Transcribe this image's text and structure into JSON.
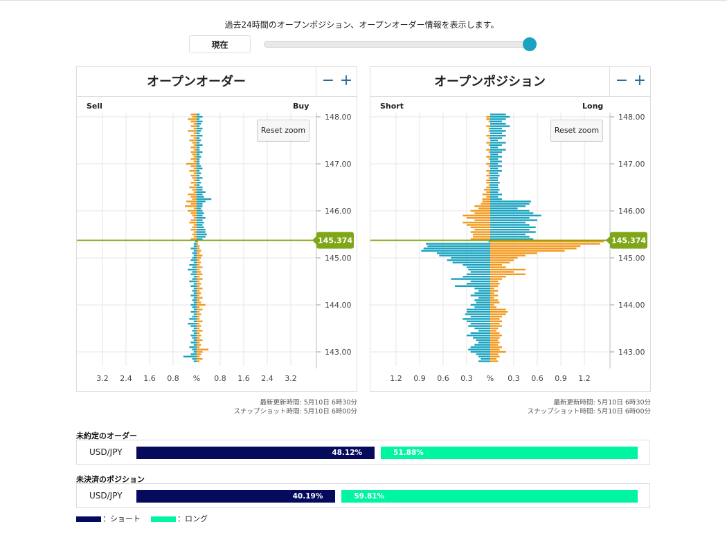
{
  "header": {
    "description": "過去24時間のオープンポジション、オープンオーダー情報を表示します。",
    "now_button": "現在",
    "time_slider_position": 1.0
  },
  "colors": {
    "sell_short_bar": "#1aa3c0",
    "buy_long_bar": "#f39a1e",
    "current_price_line": "#7fa616",
    "ratio_short": "#050a5c",
    "ratio_long": "#00f5a0",
    "slider_knob": "#1aa3c0",
    "zoom_buttons": "#2a6c96"
  },
  "panels": [
    {
      "title": "オープンオーダー",
      "left_label": "Sell",
      "right_label": "Buy",
      "reset_label": "Reset zoom",
      "updated": "最新更新時間: 5月10日 6時30分",
      "snapshot": "スナップショット時間: 5月10日 6時00分"
    },
    {
      "title": "オープンポジション",
      "left_label": "Short",
      "right_label": "Long",
      "reset_label": "Reset zoom",
      "updated": "最新更新時間: 5月10日 6時30分",
      "snapshot": "スナップショット時間: 5月10日 6時00分"
    }
  ],
  "chart_data": [
    {
      "type": "bar",
      "title": "オープンオーダー",
      "orientation": "horizontal-diverging",
      "left_series": "Sell",
      "right_series": "Buy",
      "current_price": "145.374",
      "price_ticks": [
        "148.00",
        "147.00",
        "146.00",
        "145.00",
        "144.00",
        "143.00"
      ],
      "ylim": [
        142.6,
        148.1
      ],
      "x_ticks": [
        "3.2",
        "2.4",
        "1.6",
        "0.8",
        "%",
        "0.8",
        "1.6",
        "2.4",
        "3.2"
      ],
      "xlim": [
        -4.0,
        4.0
      ],
      "bin_step": 0.05,
      "rows": [
        [
          148.05,
          0.2,
          0.1
        ],
        [
          148.0,
          0.15,
          0.2
        ],
        [
          147.95,
          0.3,
          0.1
        ],
        [
          147.9,
          0.2,
          0.2
        ],
        [
          147.85,
          0.1,
          0.15
        ],
        [
          147.8,
          0.2,
          0.1
        ],
        [
          147.75,
          0.1,
          0.2
        ],
        [
          147.7,
          0.3,
          0.15
        ],
        [
          147.65,
          0.1,
          0.1
        ],
        [
          147.6,
          0.2,
          0.2
        ],
        [
          147.55,
          0.1,
          0.1
        ],
        [
          147.5,
          0.25,
          0.15
        ],
        [
          147.45,
          0.15,
          0.1
        ],
        [
          147.4,
          0.1,
          0.2
        ],
        [
          147.35,
          0.2,
          0.1
        ],
        [
          147.3,
          0.1,
          0.1
        ],
        [
          147.25,
          0.2,
          0.2
        ],
        [
          147.2,
          0.15,
          0.1
        ],
        [
          147.15,
          0.1,
          0.15
        ],
        [
          147.1,
          0.2,
          0.1
        ],
        [
          147.05,
          0.1,
          0.1
        ],
        [
          147.0,
          0.35,
          0.1
        ],
        [
          146.95,
          0.2,
          0.15
        ],
        [
          146.9,
          0.1,
          0.2
        ],
        [
          146.85,
          0.25,
          0.1
        ],
        [
          146.8,
          0.1,
          0.15
        ],
        [
          146.75,
          0.2,
          0.1
        ],
        [
          146.7,
          0.15,
          0.2
        ],
        [
          146.65,
          0.1,
          0.1
        ],
        [
          146.6,
          0.2,
          0.15
        ],
        [
          146.55,
          0.1,
          0.1
        ],
        [
          146.5,
          0.25,
          0.2
        ],
        [
          146.45,
          0.15,
          0.2
        ],
        [
          146.4,
          0.1,
          0.3
        ],
        [
          146.35,
          0.3,
          0.2
        ],
        [
          146.3,
          0.2,
          0.25
        ],
        [
          146.25,
          0.15,
          0.5
        ],
        [
          146.2,
          0.35,
          0.3
        ],
        [
          146.15,
          0.2,
          0.2
        ],
        [
          146.1,
          0.4,
          0.2
        ],
        [
          146.05,
          0.1,
          0.15
        ],
        [
          146.0,
          0.3,
          0.2
        ],
        [
          145.95,
          0.2,
          0.25
        ],
        [
          145.9,
          0.15,
          0.2
        ],
        [
          145.85,
          0.1,
          0.3
        ],
        [
          145.8,
          0.2,
          0.2
        ],
        [
          145.75,
          0.25,
          0.25
        ],
        [
          145.7,
          0.1,
          0.2
        ],
        [
          145.65,
          0.15,
          0.25
        ],
        [
          145.6,
          0.2,
          0.3
        ],
        [
          145.55,
          0.1,
          0.3
        ],
        [
          145.5,
          0.15,
          0.35
        ],
        [
          145.45,
          0.1,
          0.3
        ],
        [
          145.4,
          0.2,
          0.2
        ],
        [
          145.35,
          0.05,
          0.05
        ],
        [
          145.3,
          0.1,
          0.05
        ],
        [
          145.25,
          0.1,
          0.1
        ],
        [
          145.2,
          0.2,
          0.1
        ],
        [
          145.15,
          0.1,
          0.15
        ],
        [
          145.1,
          0.15,
          0.1
        ],
        [
          145.05,
          0.1,
          0.2
        ],
        [
          145.0,
          0.15,
          0.15
        ],
        [
          144.95,
          0.2,
          0.1
        ],
        [
          144.9,
          0.1,
          0.15
        ],
        [
          144.85,
          0.25,
          0.1
        ],
        [
          144.8,
          0.15,
          0.2
        ],
        [
          144.75,
          0.3,
          0.1
        ],
        [
          144.7,
          0.15,
          0.15
        ],
        [
          144.65,
          0.2,
          0.2
        ],
        [
          144.6,
          0.1,
          0.1
        ],
        [
          144.55,
          0.15,
          0.2
        ],
        [
          144.5,
          0.25,
          0.1
        ],
        [
          144.45,
          0.1,
          0.15
        ],
        [
          144.4,
          0.2,
          0.1
        ],
        [
          144.35,
          0.1,
          0.2
        ],
        [
          144.3,
          0.15,
          0.1
        ],
        [
          144.25,
          0.1,
          0.15
        ],
        [
          144.2,
          0.2,
          0.1
        ],
        [
          144.15,
          0.1,
          0.2
        ],
        [
          144.1,
          0.15,
          0.1
        ],
        [
          144.05,
          0.1,
          0.15
        ],
        [
          144.0,
          0.2,
          0.3
        ],
        [
          143.95,
          0.15,
          0.1
        ],
        [
          143.9,
          0.1,
          0.2
        ],
        [
          143.85,
          0.2,
          0.1
        ],
        [
          143.8,
          0.1,
          0.15
        ],
        [
          143.75,
          0.15,
          0.1
        ],
        [
          143.7,
          0.25,
          0.1
        ],
        [
          143.65,
          0.1,
          0.2
        ],
        [
          143.6,
          0.3,
          0.1
        ],
        [
          143.55,
          0.2,
          0.15
        ],
        [
          143.5,
          0.1,
          0.1
        ],
        [
          143.45,
          0.15,
          0.2
        ],
        [
          143.4,
          0.1,
          0.1
        ],
        [
          143.35,
          0.2,
          0.15
        ],
        [
          143.3,
          0.15,
          0.1
        ],
        [
          143.25,
          0.1,
          0.2
        ],
        [
          143.2,
          0.2,
          0.1
        ],
        [
          143.15,
          0.1,
          0.15
        ],
        [
          143.1,
          0.25,
          0.1
        ],
        [
          143.05,
          0.15,
          0.4
        ],
        [
          143.0,
          0.1,
          0.2
        ],
        [
          142.95,
          0.2,
          0.15
        ],
        [
          142.9,
          0.45,
          0.1
        ],
        [
          142.85,
          0.15,
          0.2
        ],
        [
          142.8,
          0.1,
          0.1
        ]
      ]
    },
    {
      "type": "bar",
      "title": "オープンポジション",
      "orientation": "horizontal-diverging",
      "left_series": "Short",
      "right_series": "Long",
      "current_price": "145.374",
      "price_ticks": [
        "148.00",
        "147.00",
        "146.00",
        "145.00",
        "144.00",
        "143.00"
      ],
      "ylim": [
        142.6,
        148.1
      ],
      "x_ticks": [
        "1.2",
        "0.9",
        "0.6",
        "0.3",
        "%",
        "0.3",
        "0.6",
        "0.9",
        "1.2"
      ],
      "xlim": [
        -1.5,
        1.5
      ],
      "bin_step": 0.05,
      "rows": [
        [
          148.05,
          0.0,
          0.2
        ],
        [
          148.0,
          0.05,
          0.25
        ],
        [
          147.95,
          0.05,
          0.2
        ],
        [
          147.9,
          0.02,
          0.15
        ],
        [
          147.85,
          0.0,
          0.2
        ],
        [
          147.8,
          0.05,
          0.25
        ],
        [
          147.75,
          0.02,
          0.15
        ],
        [
          147.7,
          0.02,
          0.2
        ],
        [
          147.65,
          0.0,
          0.15
        ],
        [
          147.6,
          0.05,
          0.2
        ],
        [
          147.55,
          0.02,
          0.15
        ],
        [
          147.5,
          0.0,
          0.1
        ],
        [
          147.45,
          0.05,
          0.2
        ],
        [
          147.4,
          0.02,
          0.15
        ],
        [
          147.35,
          0.0,
          0.1
        ],
        [
          147.3,
          0.05,
          0.2
        ],
        [
          147.25,
          0.02,
          0.15
        ],
        [
          147.2,
          0.0,
          0.1
        ],
        [
          147.15,
          0.05,
          0.15
        ],
        [
          147.1,
          0.02,
          0.1
        ],
        [
          147.05,
          0.0,
          0.15
        ],
        [
          147.0,
          0.05,
          0.1
        ],
        [
          146.95,
          0.02,
          0.15
        ],
        [
          146.9,
          0.0,
          0.1
        ],
        [
          146.85,
          0.05,
          0.15
        ],
        [
          146.8,
          0.02,
          0.1
        ],
        [
          146.75,
          0.05,
          0.12
        ],
        [
          146.7,
          0.02,
          0.1
        ],
        [
          146.65,
          0.05,
          0.1
        ],
        [
          146.6,
          0.05,
          0.12
        ],
        [
          146.55,
          0.02,
          0.1
        ],
        [
          146.5,
          0.05,
          0.1
        ],
        [
          146.45,
          0.08,
          0.12
        ],
        [
          146.4,
          0.05,
          0.1
        ],
        [
          146.35,
          0.1,
          0.15
        ],
        [
          146.3,
          0.05,
          0.1
        ],
        [
          146.25,
          0.1,
          0.15
        ],
        [
          146.2,
          0.1,
          0.52
        ],
        [
          146.15,
          0.12,
          0.5
        ],
        [
          146.1,
          0.2,
          0.45
        ],
        [
          146.05,
          0.15,
          0.35
        ],
        [
          146.0,
          0.25,
          0.5
        ],
        [
          145.95,
          0.2,
          0.55
        ],
        [
          145.9,
          0.35,
          0.65
        ],
        [
          145.85,
          0.3,
          0.5
        ],
        [
          145.8,
          0.2,
          0.6
        ],
        [
          145.75,
          0.35,
          0.45
        ],
        [
          145.7,
          0.3,
          0.5
        ],
        [
          145.65,
          0.25,
          0.58
        ],
        [
          145.6,
          0.2,
          0.5
        ],
        [
          145.55,
          0.25,
          0.58
        ],
        [
          145.5,
          0.22,
          0.45
        ],
        [
          145.45,
          0.22,
          0.5
        ],
        [
          145.4,
          0.25,
          0.55
        ],
        [
          145.35,
          0.02,
          1.45
        ],
        [
          145.3,
          0.82,
          1.4
        ],
        [
          145.25,
          0.8,
          1.15
        ],
        [
          145.2,
          0.85,
          1.1
        ],
        [
          145.15,
          0.88,
          0.95
        ],
        [
          145.1,
          0.68,
          0.6
        ],
        [
          145.05,
          0.65,
          0.45
        ],
        [
          145.0,
          0.5,
          0.35
        ],
        [
          144.95,
          0.55,
          0.3
        ],
        [
          144.9,
          0.48,
          0.25
        ],
        [
          144.85,
          0.35,
          0.15
        ],
        [
          144.8,
          0.3,
          0.2
        ],
        [
          144.75,
          0.28,
          0.45
        ],
        [
          144.7,
          0.25,
          0.3
        ],
        [
          144.65,
          0.3,
          0.45
        ],
        [
          144.6,
          0.35,
          0.2
        ],
        [
          144.55,
          0.5,
          0.15
        ],
        [
          144.5,
          0.25,
          0.1
        ],
        [
          144.45,
          0.3,
          0.12
        ],
        [
          144.4,
          0.45,
          0.1
        ],
        [
          144.35,
          0.2,
          0.05
        ],
        [
          144.3,
          0.15,
          0.1
        ],
        [
          144.25,
          0.2,
          0.05
        ],
        [
          144.2,
          0.25,
          0.1
        ],
        [
          144.15,
          0.15,
          0.05
        ],
        [
          144.1,
          0.2,
          0.1
        ],
        [
          144.05,
          0.18,
          0.12
        ],
        [
          144.0,
          0.25,
          0.05
        ],
        [
          143.95,
          0.2,
          0.08
        ],
        [
          143.9,
          0.3,
          0.2
        ],
        [
          143.85,
          0.3,
          0.22
        ],
        [
          143.8,
          0.32,
          0.2
        ],
        [
          143.75,
          0.25,
          0.15
        ],
        [
          143.7,
          0.35,
          0.12
        ],
        [
          143.65,
          0.3,
          0.15
        ],
        [
          143.6,
          0.25,
          0.12
        ],
        [
          143.55,
          0.28,
          0.15
        ],
        [
          143.5,
          0.2,
          0.1
        ],
        [
          143.45,
          0.15,
          0.08
        ],
        [
          143.4,
          0.25,
          0.12
        ],
        [
          143.35,
          0.3,
          0.15
        ],
        [
          143.3,
          0.22,
          0.12
        ],
        [
          143.25,
          0.18,
          0.1
        ],
        [
          143.2,
          0.15,
          0.12
        ],
        [
          143.15,
          0.2,
          0.1
        ],
        [
          143.1,
          0.25,
          0.15
        ],
        [
          143.05,
          0.28,
          0.12
        ],
        [
          143.0,
          0.25,
          0.2
        ],
        [
          142.95,
          0.18,
          0.1
        ],
        [
          142.9,
          0.15,
          0.12
        ],
        [
          142.85,
          0.12,
          0.08
        ],
        [
          142.8,
          0.15,
          0.1
        ]
      ]
    },
    {
      "type": "bar",
      "title": "未約定のオーダー",
      "orientation": "horizontal-stacked",
      "categories": [
        "USD/JPY"
      ],
      "series": [
        {
          "name": "ショート",
          "values": [
            48.12
          ],
          "label": "48.12%"
        },
        {
          "name": "ロング",
          "values": [
            51.88
          ],
          "label": "51.88%"
        }
      ]
    },
    {
      "type": "bar",
      "title": "未決済のポジション",
      "orientation": "horizontal-stacked",
      "categories": [
        "USD/JPY"
      ],
      "series": [
        {
          "name": "ショート",
          "values": [
            40.19
          ],
          "label": "40.19%"
        },
        {
          "name": "ロング",
          "values": [
            59.81
          ],
          "label": "59.81%"
        }
      ]
    }
  ],
  "ratio_sections": [
    {
      "title": "未約定のオーダー",
      "pair": "USD/JPY",
      "short_pct": 48.12,
      "long_pct": 51.88,
      "short_label": "48.12%",
      "long_label": "51.88%"
    },
    {
      "title": "未決済のポジション",
      "pair": "USD/JPY",
      "short_pct": 40.19,
      "long_pct": 59.81,
      "short_label": "40.19%",
      "long_label": "59.81%"
    }
  ],
  "legend": {
    "short": "：ショート",
    "long": "：ロング"
  }
}
